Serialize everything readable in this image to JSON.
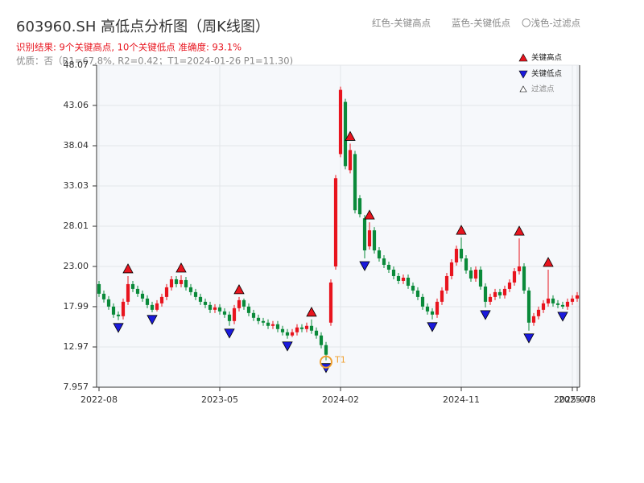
{
  "chart_data": {
    "type": "candlestick",
    "title": "603960.SH 高低点分析图（周K线图）",
    "subtitle": "识别结果: 9个关键高点, 10个关键低点  准确度: 93.1%",
    "note": "优质：否（R1=67.8%, R2=0.42；T1=2024-01-26 P1=11.30)",
    "top_legend": [
      "红色-关键高点",
      "蓝色-关键低点",
      "〇浅色-过滤点"
    ],
    "legend": [
      "关键高点",
      "关键低点",
      "过滤点"
    ],
    "annotation": {
      "text": "T1",
      "index": 47
    },
    "up_color": "#e8141e",
    "down_color": "#0a8a3a",
    "high_color": "#e8141e",
    "low_color": "#1a1adc",
    "grid": true,
    "ylim": [
      7.957,
      48.07
    ],
    "yticks": [
      7.957,
      12.97,
      17.99,
      {
        "value": 23.0,
        "label": "23.00"
      },
      28.01,
      33.03,
      38.04,
      43.06,
      48.07
    ],
    "categories": [
      "2022-08",
      null,
      null,
      null,
      null,
      null,
      null,
      null,
      null,
      null,
      null,
      null,
      null,
      null,
      null,
      null,
      null,
      null,
      null,
      null,
      null,
      null,
      null,
      null,
      null,
      "2023-05",
      null,
      null,
      null,
      null,
      null,
      null,
      null,
      null,
      null,
      null,
      null,
      null,
      null,
      null,
      null,
      null,
      null,
      null,
      null,
      null,
      null,
      null,
      null,
      null,
      "2024-02",
      null,
      null,
      null,
      null,
      null,
      null,
      null,
      null,
      null,
      null,
      null,
      null,
      null,
      null,
      null,
      null,
      null,
      null,
      null,
      null,
      null,
      null,
      null,
      null,
      "2024-11",
      null,
      null,
      null,
      null,
      null,
      null,
      null,
      null,
      null,
      null,
      null,
      null,
      null,
      null,
      null,
      null,
      null,
      null,
      null,
      null,
      null,
      null,
      "2025-07",
      "2025-08"
    ],
    "open": [
      20.8,
      19.6,
      18.9,
      18.0,
      17.0,
      16.8,
      18.6,
      20.8,
      20.2,
      19.6,
      19.0,
      18.2,
      17.6,
      18.4,
      19.2,
      20.4,
      21.4,
      20.8,
      21.3,
      20.4,
      19.8,
      19.2,
      18.6,
      18.2,
      17.6,
      17.9,
      17.4,
      17.0,
      16.2,
      17.8,
      18.8,
      18.0,
      17.2,
      16.6,
      16.2,
      16.0,
      15.6,
      15.8,
      15.2,
      14.8,
      14.4,
      14.8,
      15.4,
      15.2,
      15.6,
      15.0,
      14.4,
      13.2,
      16.0,
      23.0,
      37.0,
      43.5,
      35.0,
      37.0,
      31.5,
      29.0,
      25.5,
      27.5,
      25.0,
      24.0,
      23.2,
      22.6,
      21.8,
      21.2,
      21.6,
      20.6,
      20.0,
      19.2,
      18.0,
      17.4,
      17.0,
      18.6,
      20.0,
      21.8,
      23.5,
      25.2,
      24.0,
      22.5,
      21.5,
      22.6,
      20.5,
      18.6,
      19.2,
      19.8,
      19.4,
      20.2,
      21.0,
      22.4,
      23.0,
      20.0,
      16.0,
      16.8,
      17.6,
      18.4,
      19.0,
      18.4,
      18.2,
      18.0,
      18.6,
      19.0
    ],
    "high": [
      21.2,
      20.0,
      19.3,
      18.4,
      17.4,
      19.0,
      21.8,
      21.2,
      20.6,
      20.0,
      19.4,
      18.6,
      18.8,
      19.6,
      20.8,
      21.8,
      21.8,
      21.9,
      21.7,
      20.8,
      20.2,
      19.6,
      19.0,
      18.6,
      18.3,
      18.3,
      17.8,
      17.4,
      18.2,
      19.2,
      19.0,
      18.4,
      17.6,
      17.0,
      16.6,
      16.4,
      16.2,
      16.2,
      15.6,
      15.2,
      15.2,
      15.8,
      15.8,
      16.0,
      16.4,
      15.4,
      14.8,
      13.6,
      21.4,
      34.4,
      45.4,
      43.9,
      38.3,
      37.4,
      31.9,
      29.4,
      28.5,
      27.9,
      25.4,
      24.4,
      23.6,
      23.0,
      22.2,
      22.0,
      22.0,
      21.0,
      20.4,
      19.6,
      18.4,
      17.8,
      19.0,
      20.4,
      22.2,
      23.9,
      25.6,
      26.6,
      24.4,
      22.9,
      23.0,
      23.0,
      20.9,
      19.6,
      20.2,
      20.2,
      20.6,
      21.4,
      22.8,
      26.5,
      23.4,
      20.4,
      17.2,
      18.0,
      18.8,
      22.6,
      19.4,
      18.8,
      18.6,
      19.0,
      19.4,
      19.8
    ],
    "low": [
      19.2,
      18.5,
      17.6,
      16.6,
      16.3,
      16.4,
      18.2,
      19.8,
      19.2,
      18.6,
      17.8,
      17.3,
      17.4,
      18.0,
      18.8,
      20.0,
      20.4,
      20.4,
      20.0,
      19.4,
      18.8,
      18.2,
      17.8,
      17.2,
      17.2,
      17.0,
      16.6,
      15.6,
      15.8,
      17.4,
      17.6,
      16.8,
      16.2,
      15.8,
      15.6,
      15.2,
      15.2,
      14.8,
      14.4,
      14.0,
      14.2,
      14.4,
      14.8,
      14.8,
      14.6,
      14.0,
      12.8,
      11.3,
      15.6,
      22.6,
      36.6,
      35.1,
      34.6,
      29.6,
      29.1,
      24.0,
      25.1,
      24.6,
      23.6,
      22.8,
      22.2,
      21.4,
      20.8,
      20.8,
      20.2,
      19.6,
      18.8,
      17.6,
      17.0,
      16.4,
      16.6,
      18.2,
      19.6,
      21.4,
      23.1,
      23.6,
      22.1,
      21.1,
      21.1,
      20.1,
      17.9,
      18.2,
      18.8,
      19.0,
      19.0,
      19.8,
      20.6,
      22.0,
      19.6,
      15.0,
      15.6,
      16.4,
      17.2,
      18.0,
      18.0,
      17.8,
      17.7,
      17.6,
      18.2,
      18.6
    ],
    "close": [
      19.6,
      18.9,
      18.0,
      17.0,
      16.8,
      18.6,
      20.8,
      20.2,
      19.6,
      19.0,
      18.2,
      17.6,
      18.4,
      19.2,
      20.4,
      21.4,
      20.8,
      21.3,
      20.4,
      19.8,
      19.2,
      18.6,
      18.2,
      17.6,
      17.9,
      17.4,
      17.0,
      16.2,
      17.8,
      18.8,
      18.0,
      17.2,
      16.6,
      16.2,
      16.0,
      15.6,
      15.8,
      15.2,
      14.8,
      14.4,
      14.8,
      15.4,
      15.2,
      15.6,
      15.0,
      14.4,
      13.2,
      12.0,
      21.0,
      34.0,
      45.0,
      35.5,
      37.5,
      30.0,
      29.5,
      25.0,
      27.5,
      25.0,
      24.0,
      23.2,
      22.6,
      21.8,
      21.2,
      21.6,
      20.6,
      20.0,
      19.2,
      18.0,
      17.4,
      17.0,
      18.6,
      20.0,
      21.8,
      23.5,
      25.2,
      24.0,
      22.5,
      21.5,
      22.6,
      20.5,
      18.6,
      19.2,
      19.8,
      19.4,
      20.2,
      21.0,
      22.4,
      23.0,
      20.0,
      16.0,
      16.8,
      17.6,
      18.4,
      19.0,
      18.4,
      18.2,
      18.0,
      18.6,
      19.0,
      19.4
    ],
    "key_highs": [
      6,
      17,
      29,
      44,
      52,
      56,
      75,
      87,
      93
    ],
    "key_lows": [
      4,
      11,
      27,
      39,
      47,
      55,
      69,
      80,
      89,
      96
    ]
  }
}
